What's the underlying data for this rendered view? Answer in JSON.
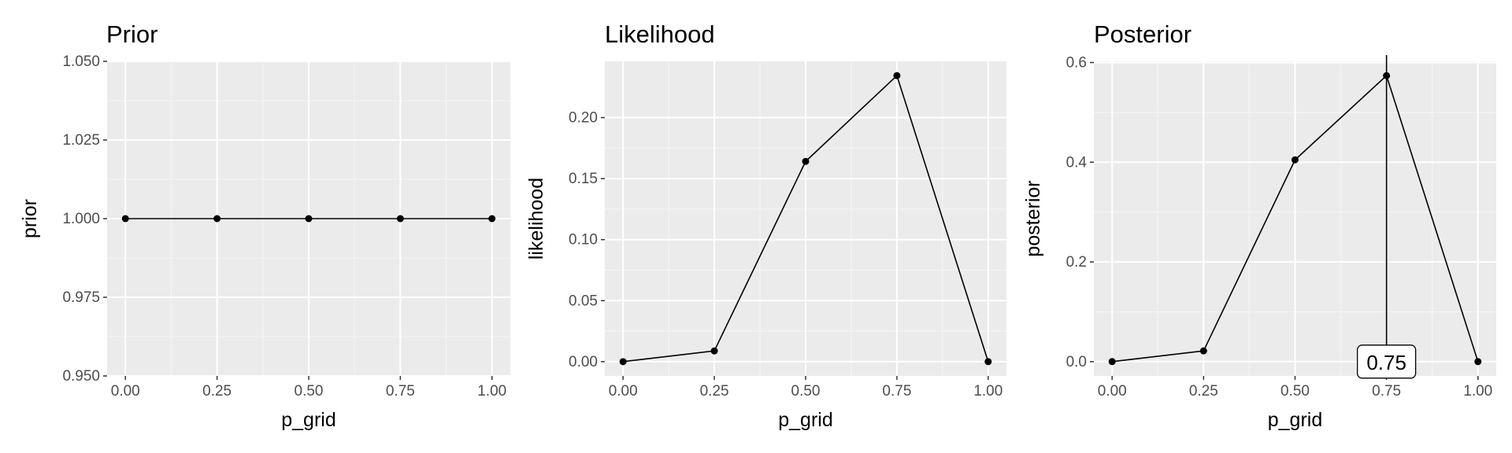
{
  "chart_data": [
    {
      "type": "line",
      "title": "Prior",
      "xlabel": "p_grid",
      "ylabel": "prior",
      "x": [
        0,
        0.25,
        0.5,
        0.75,
        1
      ],
      "y": [
        1,
        1,
        1,
        1,
        1
      ],
      "xlim": [
        -0.05,
        1.05
      ],
      "ylim": [
        0.95,
        1.05
      ],
      "xticks": [
        0,
        0.25,
        0.5,
        0.75,
        1
      ],
      "xtick_labels": [
        "0.00",
        "0.25",
        "0.50",
        "0.75",
        "1.00"
      ],
      "yticks": [
        0.95,
        0.975,
        1.0,
        1.025,
        1.05
      ],
      "ytick_labels": [
        "0.950",
        "0.975",
        "1.000",
        "1.025",
        "1.050"
      ],
      "grid": true,
      "markers": true
    },
    {
      "type": "line",
      "title": "Likelihood",
      "xlabel": "p_grid",
      "ylabel": "likelihood",
      "x": [
        0,
        0.25,
        0.5,
        0.75,
        1
      ],
      "y": [
        0,
        0.0088,
        0.1641,
        0.2344,
        0
      ],
      "xlim": [
        -0.05,
        1.05
      ],
      "ylim": [
        -0.0117,
        0.2461
      ],
      "xticks": [
        0,
        0.25,
        0.5,
        0.75,
        1
      ],
      "xtick_labels": [
        "0.00",
        "0.25",
        "0.50",
        "0.75",
        "1.00"
      ],
      "yticks": [
        0,
        0.05,
        0.1,
        0.15,
        0.2
      ],
      "ytick_labels": [
        "0.00",
        "0.05",
        "0.10",
        "0.15",
        "0.20"
      ],
      "grid": true,
      "markers": true
    },
    {
      "type": "line",
      "title": "Posterior",
      "xlabel": "p_grid",
      "ylabel": "posterior",
      "x": [
        0,
        0.25,
        0.5,
        0.75,
        1
      ],
      "y": [
        0,
        0.0215,
        0.4048,
        0.5737,
        0
      ],
      "xlim": [
        -0.05,
        1.05
      ],
      "ylim": [
        -0.0287,
        0.6024
      ],
      "xticks": [
        0,
        0.25,
        0.5,
        0.75,
        1
      ],
      "xtick_labels": [
        "0.00",
        "0.25",
        "0.50",
        "0.75",
        "1.00"
      ],
      "yticks": [
        0,
        0.2,
        0.4,
        0.6
      ],
      "ytick_labels": [
        "0.0",
        "0.2",
        "0.4",
        "0.6"
      ],
      "grid": true,
      "markers": true,
      "vline": {
        "x": 0.75,
        "label": "0.75"
      }
    }
  ],
  "colors": {
    "panel_bg": "#EBEBEB",
    "grid_major": "#FFFFFF",
    "grid_minor": "#F4F4F4",
    "line": "#000000",
    "axis_text": "#4D4D4D",
    "title_text": "#000000"
  }
}
